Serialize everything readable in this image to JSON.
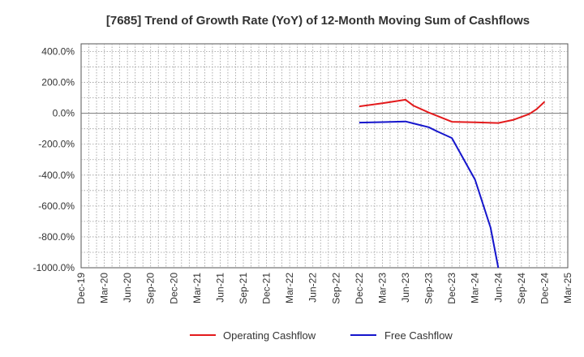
{
  "chart_data": {
    "type": "line",
    "title": "[7685]  Trend of Growth Rate (YoY) of 12-Month Moving Sum of Cashflows",
    "xlabel": "",
    "ylabel": "",
    "ylim": [
      -1000,
      450
    ],
    "yticks": [
      400,
      200,
      0,
      -200,
      -400,
      -600,
      -800,
      -1000
    ],
    "ytick_labels": [
      "400.0%",
      "200.0%",
      "0.0%",
      "-200.0%",
      "-400.0%",
      "-600.0%",
      "-800.0%",
      "-1000.0%"
    ],
    "x_tick_labels": [
      "Dec-19",
      "Mar-20",
      "Jun-20",
      "Sep-20",
      "Dec-20",
      "Mar-21",
      "Jun-21",
      "Sep-21",
      "Dec-21",
      "Mar-22",
      "Jun-22",
      "Sep-22",
      "Dec-22",
      "Mar-23",
      "Jun-23",
      "Sep-23",
      "Dec-23",
      "Mar-24",
      "Jun-24",
      "Sep-24",
      "Dec-24",
      "Mar-25"
    ],
    "grid": true,
    "legend_position": "bottom-center",
    "series": [
      {
        "name": "Operating Cashflow",
        "color": "#e31a1c",
        "points": [
          [
            "Dec-22",
            45
          ],
          [
            "Mar-23",
            65
          ],
          [
            "Jun-23",
            88
          ],
          [
            "Jul-23",
            50
          ],
          [
            "Sep-23",
            5
          ],
          [
            "Dec-23",
            -55
          ],
          [
            "Mar-24",
            -58
          ],
          [
            "Jun-24",
            -63
          ],
          [
            "Aug-24",
            -42
          ],
          [
            "Oct-24",
            -5
          ],
          [
            "Nov-24",
            28
          ],
          [
            "Dec-24",
            75
          ]
        ]
      },
      {
        "name": "Free Cashflow",
        "color": "#1515cc",
        "points": [
          [
            "Dec-22",
            -60
          ],
          [
            "Mar-23",
            -57
          ],
          [
            "Jun-23",
            -53
          ],
          [
            "Sep-23",
            -90
          ],
          [
            "Oct-23",
            -115
          ],
          [
            "Dec-23",
            -160
          ],
          [
            "Mar-24",
            -430
          ],
          [
            "May-24",
            -740
          ],
          [
            "Jun-24",
            -1000
          ]
        ]
      }
    ]
  }
}
